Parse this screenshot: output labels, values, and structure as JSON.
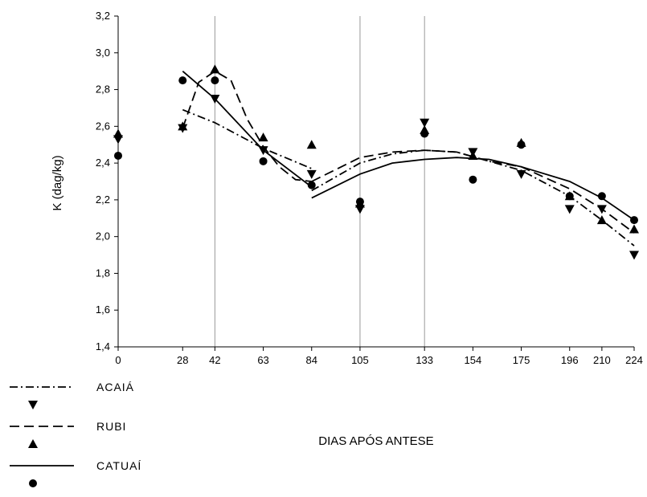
{
  "chart_data": {
    "type": "scatter",
    "xlabel": "DIAS APÓS ANTESE",
    "ylabel": "K (dag/kg)",
    "xlim": [
      0,
      224
    ],
    "ylim": [
      1.4,
      3.2
    ],
    "x_ticks": [
      0,
      28,
      42,
      63,
      84,
      105,
      133,
      154,
      175,
      196,
      210,
      224
    ],
    "y_ticks": [
      "1,4",
      "1,6",
      "1,8",
      "2,0",
      "2,2",
      "2,4",
      "2,6",
      "2,8",
      "3,0",
      "3,2"
    ],
    "y_tick_values": [
      1.4,
      1.6,
      1.8,
      2.0,
      2.2,
      2.4,
      2.6,
      2.8,
      3.0,
      3.2
    ],
    "vertical_reference_lines": [
      42,
      105,
      133
    ],
    "legend_position": "bottom-left",
    "series": [
      {
        "name": "ACAIÁ",
        "marker": "triangle-down",
        "line_style": "dash-dot",
        "points": [
          [
            0,
            2.53
          ],
          [
            28,
            2.59
          ],
          [
            42,
            2.75
          ],
          [
            63,
            2.47
          ],
          [
            84,
            2.34
          ],
          [
            105,
            2.15
          ],
          [
            133,
            2.62
          ],
          [
            154,
            2.46
          ],
          [
            175,
            2.34
          ],
          [
            196,
            2.15
          ],
          [
            210,
            2.15
          ],
          [
            224,
            1.9
          ]
        ],
        "fit_segment_1": [
          [
            28,
            2.69
          ],
          [
            42,
            2.62
          ],
          [
            63,
            2.48
          ],
          [
            84,
            2.37
          ]
        ],
        "fit_segment_2": [
          [
            84,
            2.25
          ],
          [
            105,
            2.4
          ],
          [
            119,
            2.45
          ],
          [
            133,
            2.47
          ],
          [
            147,
            2.46
          ],
          [
            161,
            2.41
          ],
          [
            175,
            2.36
          ],
          [
            196,
            2.22
          ],
          [
            210,
            2.09
          ],
          [
            224,
            1.95
          ]
        ]
      },
      {
        "name": "RUBI",
        "marker": "triangle-up",
        "line_style": "dashed",
        "points": [
          [
            0,
            2.56
          ],
          [
            28,
            2.6
          ],
          [
            42,
            2.91
          ],
          [
            63,
            2.54
          ],
          [
            84,
            2.5
          ],
          [
            105,
            2.18
          ],
          [
            133,
            2.58
          ],
          [
            154,
            2.44
          ],
          [
            175,
            2.51
          ],
          [
            196,
            2.22
          ],
          [
            210,
            2.09
          ],
          [
            224,
            2.04
          ]
        ],
        "fit_segment_1": [
          [
            28,
            2.59
          ],
          [
            35,
            2.84
          ],
          [
            42,
            2.9
          ],
          [
            49,
            2.85
          ],
          [
            56,
            2.64
          ],
          [
            63,
            2.49
          ],
          [
            70,
            2.38
          ],
          [
            77,
            2.31
          ],
          [
            84,
            2.3
          ]
        ],
        "fit_segment_2": [
          [
            84,
            2.3
          ],
          [
            105,
            2.43
          ],
          [
            119,
            2.46
          ],
          [
            133,
            2.47
          ],
          [
            147,
            2.46
          ],
          [
            161,
            2.41
          ],
          [
            175,
            2.38
          ],
          [
            196,
            2.26
          ],
          [
            210,
            2.15
          ],
          [
            224,
            2.02
          ]
        ]
      },
      {
        "name": "CATUAÍ",
        "marker": "circle",
        "line_style": "solid",
        "points": [
          [
            0,
            2.44
          ],
          [
            28,
            2.85
          ],
          [
            42,
            2.85
          ],
          [
            63,
            2.41
          ],
          [
            84,
            2.28
          ],
          [
            105,
            2.19
          ],
          [
            133,
            2.56
          ],
          [
            154,
            2.31
          ],
          [
            175,
            2.5
          ],
          [
            196,
            2.22
          ],
          [
            210,
            2.22
          ],
          [
            224,
            2.09
          ]
        ],
        "fit_segment_1": [
          [
            28,
            2.9
          ],
          [
            42,
            2.75
          ],
          [
            63,
            2.47
          ],
          [
            84,
            2.27
          ]
        ],
        "fit_segment_2": [
          [
            84,
            2.21
          ],
          [
            105,
            2.34
          ],
          [
            119,
            2.4
          ],
          [
            133,
            2.42
          ],
          [
            147,
            2.43
          ],
          [
            161,
            2.42
          ],
          [
            175,
            2.38
          ],
          [
            196,
            2.3
          ],
          [
            210,
            2.21
          ],
          [
            224,
            2.09
          ]
        ]
      }
    ]
  }
}
